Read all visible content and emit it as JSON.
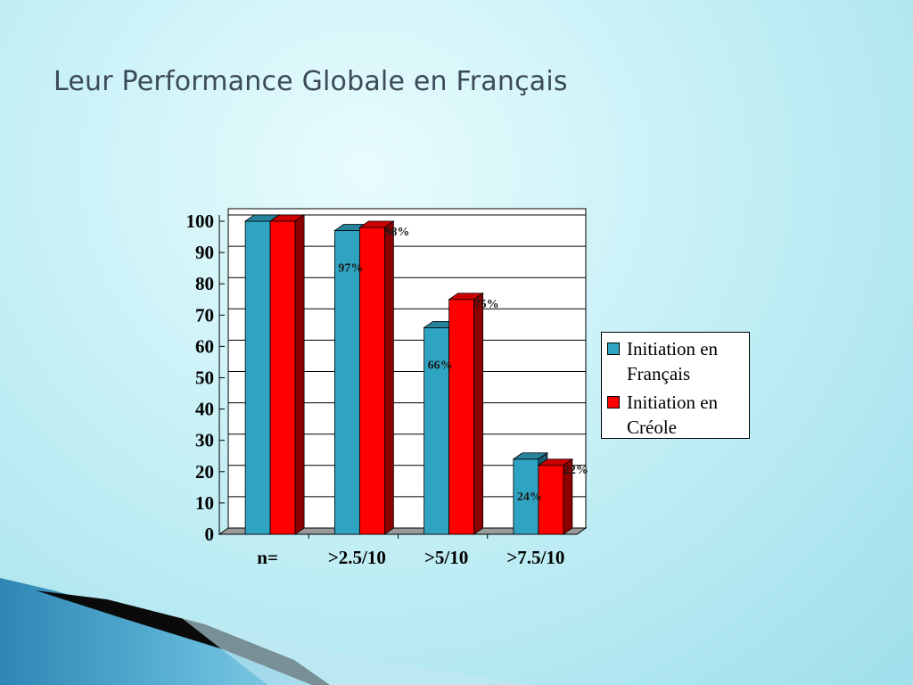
{
  "slide": {
    "title": "Leur Performance Globale en Français"
  },
  "chart_data": {
    "type": "bar",
    "title": "",
    "xlabel": "",
    "ylabel": "",
    "ylim": [
      0,
      100
    ],
    "yticks": [
      "0",
      "10",
      "20",
      "30",
      "40",
      "50",
      "60",
      "70",
      "80",
      "90",
      "100"
    ],
    "categories": [
      "n=",
      ">2.5/10",
      ">5/10",
      ">7.5/10"
    ],
    "series": [
      {
        "name": "Initiation en Français",
        "color": "#2fa4c2",
        "values": [
          100,
          97,
          66,
          24
        ],
        "labels": [
          "",
          "97%",
          "66%",
          "24%"
        ]
      },
      {
        "name": "Initiation en Créole",
        "color": "#ff0000",
        "values": [
          100,
          98,
          75,
          22
        ],
        "labels": [
          "",
          "98%",
          "75%",
          "22%"
        ]
      }
    ],
    "grid": true,
    "legend_position": "right"
  }
}
